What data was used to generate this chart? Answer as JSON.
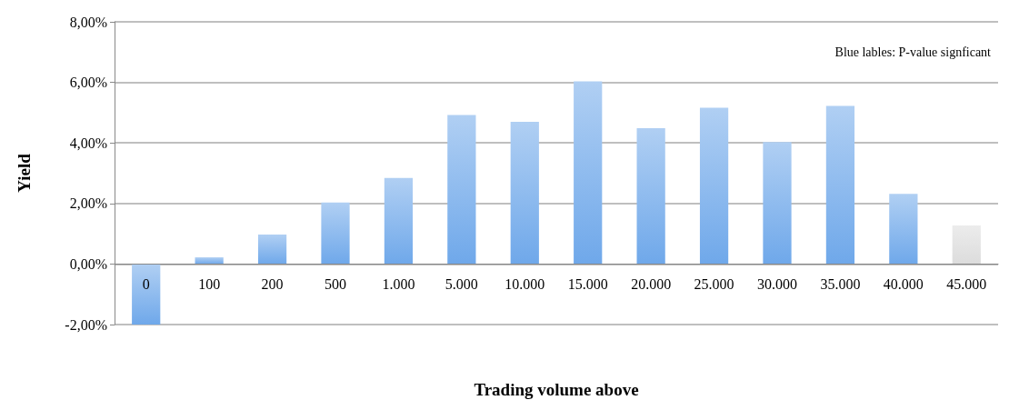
{
  "chart_data": {
    "type": "bar",
    "xlabel": "Trading volume above",
    "ylabel": "Yield",
    "categories": [
      "0",
      "100",
      "200",
      "500",
      "1.000",
      "5.000",
      "10.000",
      "15.000",
      "20.000",
      "25.000",
      "30.000",
      "35.000",
      "40.000",
      "45.000"
    ],
    "values": [
      -2.0,
      0.22,
      0.97,
      2.03,
      2.84,
      4.92,
      4.7,
      6.03,
      4.49,
      5.16,
      4.03,
      5.22,
      2.32,
      1.27
    ],
    "colors": [
      "#6fa8ea",
      "#6fa8ea",
      "#6fa8ea",
      "#6fa8ea",
      "#6fa8ea",
      "#6fa8ea",
      "#6fa8ea",
      "#6fa8ea",
      "#6fa8ea",
      "#6fa8ea",
      "#6fa8ea",
      "#6fa8ea",
      "#6fa8ea",
      "#dcdcdc"
    ],
    "ylim": [
      -2,
      8
    ],
    "yticks": [
      {
        "value": -2,
        "label": "-2,00%"
      },
      {
        "value": 0,
        "label": "0,00%"
      },
      {
        "value": 2,
        "label": "2,00%"
      },
      {
        "value": 4,
        "label": "4,00%"
      },
      {
        "value": 6,
        "label": "6,00%"
      },
      {
        "value": 8,
        "label": "8,00%"
      }
    ],
    "annotations": [
      "Blue lables: P-value signficant"
    ],
    "grid": "y"
  }
}
